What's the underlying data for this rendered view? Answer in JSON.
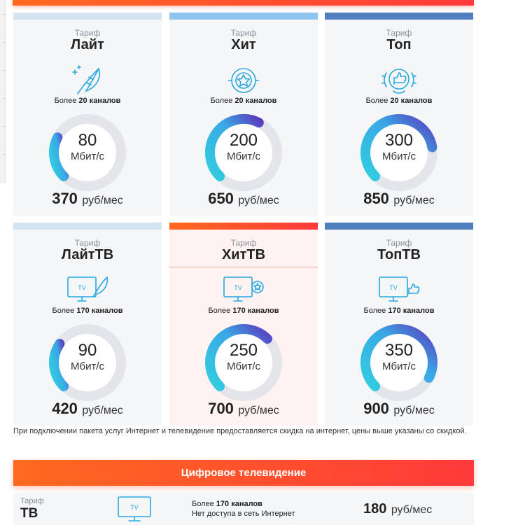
{
  "tariff_label": "Тариф",
  "speed_unit": "Мбит/с",
  "price_unit": "руб/мес",
  "channels_prefix": "Более",
  "colors": {
    "light_stripe": "#d3e3ef",
    "hit_stripe": "#8ec4ee",
    "top_stripe": "#4f7fbf",
    "highlight_stripe": "#ff4a3a",
    "gauge_track": "#e3e5ea",
    "icon_blue": "#29a8df"
  },
  "plans": [
    {
      "name": "Лайт",
      "channels": "20 каналов",
      "speed": "80",
      "price": "370",
      "fill": 0.2,
      "icon": "feather-icon"
    },
    {
      "name": "Хит",
      "channels": "20 каналов",
      "speed": "200",
      "price": "650",
      "fill": 0.45,
      "icon": "star-badge-icon"
    },
    {
      "name": "Топ",
      "channels": "20 каналов",
      "speed": "300",
      "price": "850",
      "fill": 0.6,
      "icon": "thumbs-up-wreath-icon"
    },
    {
      "name": "ЛайтТВ",
      "channels": "170 каналов",
      "speed": "90",
      "price": "420",
      "fill": 0.22,
      "icon": "tv-feather-icon"
    },
    {
      "name": "ХитТВ",
      "channels": "170 каналов",
      "speed": "250",
      "price": "700",
      "fill": 0.5,
      "icon": "tv-star-icon"
    },
    {
      "name": "ТопТВ",
      "channels": "170 каналов",
      "speed": "350",
      "price": "900",
      "fill": 0.7,
      "icon": "tv-thumbs-up-icon"
    }
  ],
  "note": "При подключении пакета услуг Интернет и телевидение предоставляется скидка на интернет, цены выше указаны со скидкой.",
  "digital_tv": {
    "header": "Цифровое телевидение",
    "tariff_label": "Тариф",
    "name": "ТВ",
    "tv_icon_text": "TV",
    "channels_prefix": "Более",
    "channels": "170 каналов",
    "no_internet": "Нет доступа в сеть Интернет",
    "price": "180",
    "price_unit": "руб/мес"
  }
}
